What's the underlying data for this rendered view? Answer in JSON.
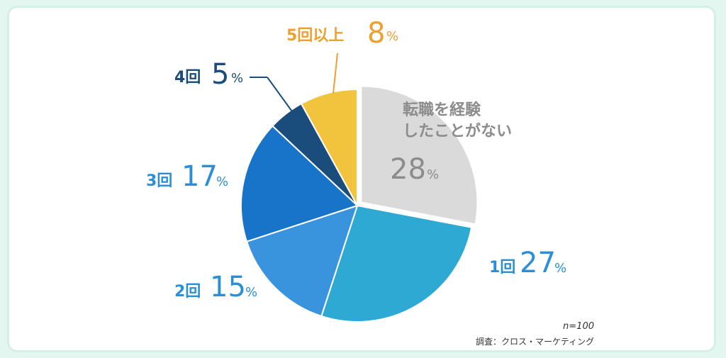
{
  "chart_data": {
    "type": "pie",
    "slices": [
      {
        "label": "転職を経験したことがない",
        "label_lines": [
          "転職を経験",
          "したことがない"
        ],
        "value": 28,
        "value_text": "28",
        "color": "#dadada"
      },
      {
        "label": "1回",
        "value": 27,
        "value_text": "27",
        "color": "#2ea9d4"
      },
      {
        "label": "2回",
        "value": 15,
        "value_text": "15",
        "color": "#3a93dd"
      },
      {
        "label": "3回",
        "value": 17,
        "value_text": "17",
        "color": "#1774c9"
      },
      {
        "label": "4回",
        "value": 5,
        "value_text": "5",
        "color": "#1a4d7c"
      },
      {
        "label": "5回以上",
        "value": 8,
        "value_text": "8",
        "color": "#f2c43d"
      }
    ],
    "unit": "%",
    "label_colors": {
      "gray": "#8c8c8c",
      "blue": "#2a8fd6",
      "navy": "#1a4d7c",
      "gold": "#eea02f"
    }
  },
  "footnote": {
    "n": "n=100",
    "source": "調査：クロス・マーケティング"
  }
}
